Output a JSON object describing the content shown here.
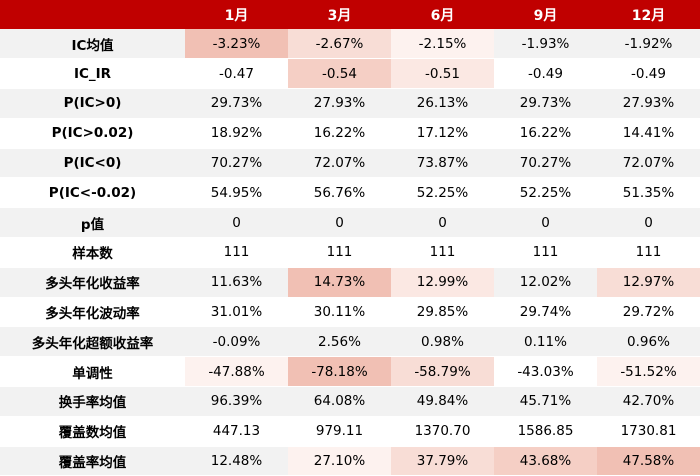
{
  "header": {
    "corner": "",
    "columns": [
      "1月",
      "3月",
      "6月",
      "9月",
      "12月"
    ]
  },
  "rows": [
    {
      "label": "IC均值",
      "values": [
        "-3.23%",
        "-2.67%",
        "-2.15%",
        "-1.93%",
        "-1.92%"
      ]
    },
    {
      "label": "IC_IR",
      "values": [
        "-0.47",
        "-0.54",
        "-0.51",
        "-0.49",
        "-0.49"
      ]
    },
    {
      "label": "P(IC>0)",
      "values": [
        "29.73%",
        "27.93%",
        "26.13%",
        "29.73%",
        "27.93%"
      ]
    },
    {
      "label": "P(IC>0.02)",
      "values": [
        "18.92%",
        "16.22%",
        "17.12%",
        "16.22%",
        "14.41%"
      ]
    },
    {
      "label": "P(IC<0)",
      "values": [
        "70.27%",
        "72.07%",
        "73.87%",
        "70.27%",
        "72.07%"
      ]
    },
    {
      "label": "P(IC<-0.02)",
      "values": [
        "54.95%",
        "56.76%",
        "52.25%",
        "52.25%",
        "51.35%"
      ]
    },
    {
      "label": "p值",
      "values": [
        "0",
        "0",
        "0",
        "0",
        "0"
      ]
    },
    {
      "label": "样本数",
      "values": [
        "111",
        "111",
        "111",
        "111",
        "111"
      ]
    },
    {
      "label": "多头年化收益率",
      "values": [
        "11.63%",
        "14.73%",
        "12.99%",
        "12.02%",
        "12.97%"
      ]
    },
    {
      "label": "多头年化波动率",
      "values": [
        "31.01%",
        "30.11%",
        "29.85%",
        "29.74%",
        "29.72%"
      ]
    },
    {
      "label": "多头年化超额收益率",
      "values": [
        "-0.09%",
        "2.56%",
        "0.98%",
        "0.11%",
        "0.96%"
      ]
    },
    {
      "label": "单调性",
      "values": [
        "-47.88%",
        "-78.18%",
        "-58.79%",
        "-43.03%",
        "-51.52%"
      ]
    },
    {
      "label": "换手率均值",
      "values": [
        "96.39%",
        "64.08%",
        "49.84%",
        "45.71%",
        "42.70%"
      ]
    },
    {
      "label": "覆盖数均值",
      "values": [
        "447.13",
        "979.11",
        "1370.70",
        "1586.85",
        "1730.81"
      ]
    },
    {
      "label": "覆盖率均值",
      "values": [
        "12.48%",
        "27.10%",
        "37.79%",
        "43.68%",
        "47.58%"
      ]
    }
  ],
  "colors": {
    "header_bg": "#c00000",
    "header_text": "#ffffff",
    "stripe": "#f2f2f2",
    "heat_strong": "#f1c0b4",
    "heat_light": "#fdf2ef"
  }
}
